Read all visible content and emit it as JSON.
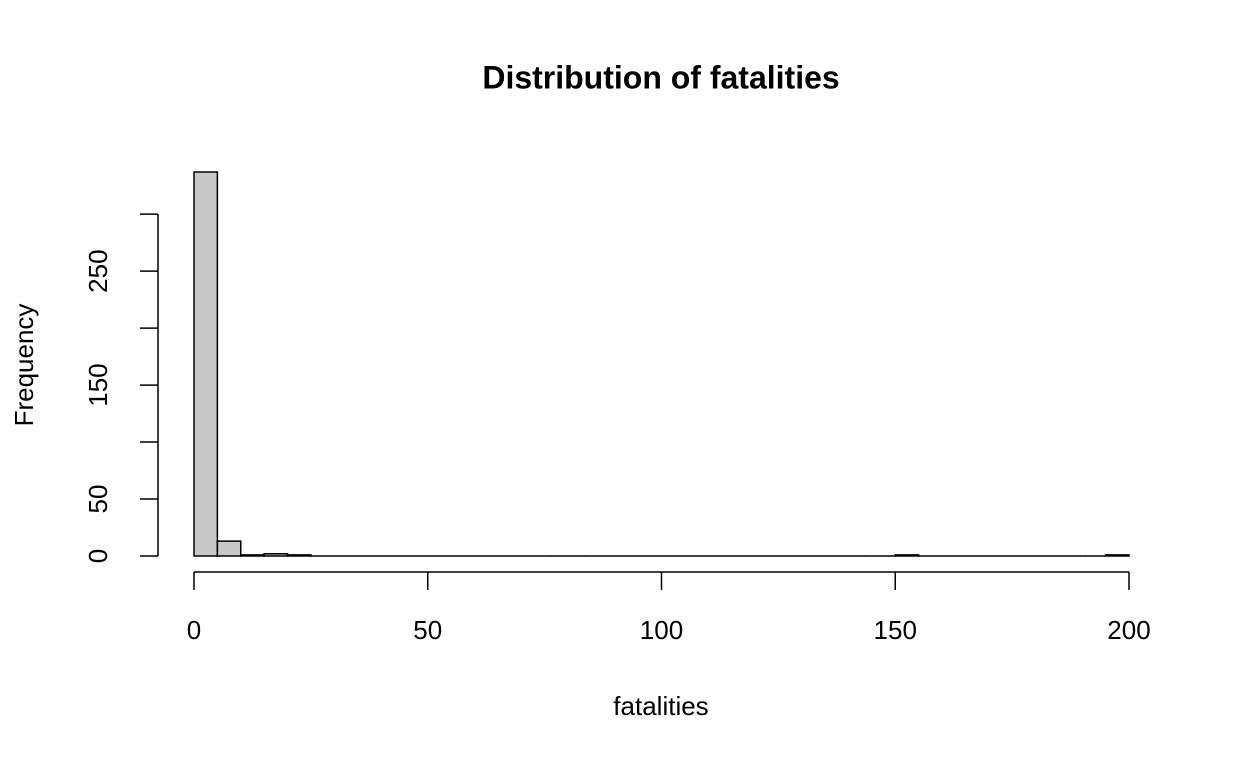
{
  "chart_data": {
    "type": "histogram",
    "title": "Distribution of fatalities",
    "xlabel": "fatalities",
    "ylabel": "Frequency",
    "bins": [
      0,
      5,
      10,
      15,
      20,
      25,
      30,
      35,
      40,
      45,
      50,
      55,
      60,
      65,
      70,
      75,
      80,
      85,
      90,
      95,
      100,
      105,
      110,
      115,
      120,
      125,
      130,
      135,
      140,
      145,
      150,
      155,
      160,
      165,
      170,
      175,
      180,
      185,
      190,
      195,
      200
    ],
    "values": [
      337,
      13,
      1,
      2,
      1,
      0,
      0,
      0,
      0,
      0,
      0,
      0,
      0,
      0,
      0,
      0,
      0,
      0,
      0,
      0,
      0,
      0,
      0,
      0,
      0,
      0,
      0,
      0,
      0,
      0,
      1,
      0,
      0,
      0,
      0,
      0,
      0,
      0,
      0,
      1
    ],
    "color": "#c8c8c8",
    "xlim": [
      0,
      200
    ],
    "xticks": [
      0,
      50,
      100,
      150,
      200
    ],
    "ylim": [
      0,
      337
    ],
    "yticks": [
      0,
      50,
      {
        "value": 100,
        "label": null
      },
      150,
      {
        "value": 200,
        "label": null
      },
      250,
      {
        "value": 300,
        "label": null
      }
    ]
  }
}
